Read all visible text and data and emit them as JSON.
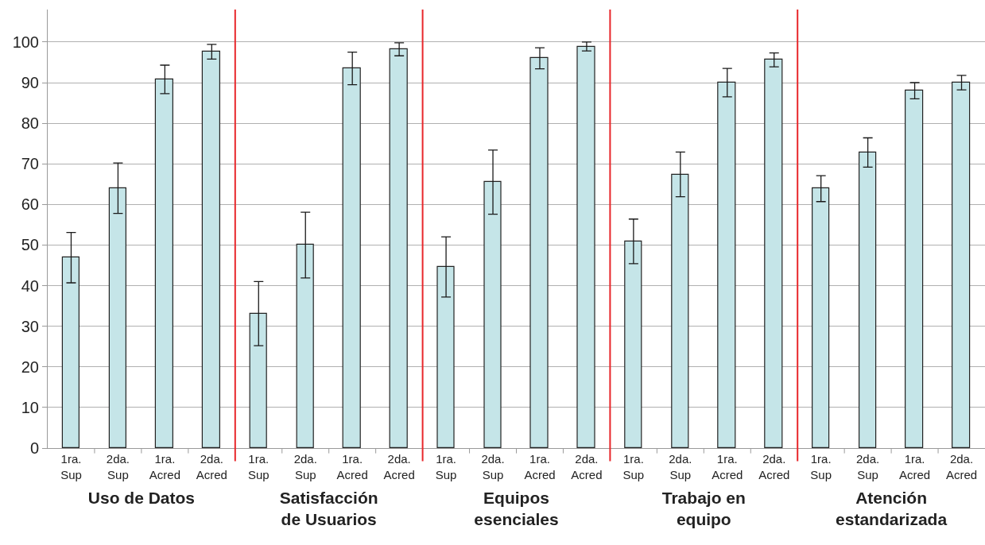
{
  "chart_data": [
    {
      "type": "bar",
      "xlabel": "Uso de Datos",
      "categories": [
        "1ra.\nSup",
        "2da.\nSup",
        "1ra.\nAcred",
        "2da.\nAcred"
      ],
      "values": [
        46.9,
        64.0,
        90.8,
        97.6
      ],
      "errors": [
        6.2,
        6.2,
        3.5,
        1.8
      ],
      "color": "#c5e5e8",
      "ylim": [
        0,
        108
      ],
      "yticks": [
        0,
        10,
        20,
        30,
        40,
        50,
        60,
        70,
        80,
        90,
        100
      ],
      "grid": "y"
    },
    {
      "type": "bar",
      "xlabel": "Satisfacción\nde Usuarios",
      "categories": [
        "1ra.\nSup",
        "2da.\nSup",
        "1ra.\nAcred",
        "2da.\nAcred"
      ],
      "values": [
        33.1,
        50.0,
        93.5,
        98.2
      ],
      "errors": [
        7.9,
        8.1,
        4.0,
        1.6
      ],
      "color": "#c5e5e8",
      "ylim": [
        0,
        108
      ],
      "yticks": [
        0,
        10,
        20,
        30,
        40,
        50,
        60,
        70,
        80,
        90,
        100
      ],
      "grid": "y",
      "tick_labels": "x"
    },
    {
      "type": "bar",
      "xlabel": "Equipos\nesenciales",
      "categories": [
        "1ra.\nSup",
        "2da.\nSup",
        "1ra.\nAcred",
        "2da.\nAcred"
      ],
      "values": [
        44.6,
        65.5,
        96.0,
        98.9
      ],
      "errors": [
        7.4,
        7.9,
        2.6,
        1.1
      ],
      "color": "#c5e5e8",
      "ylim": [
        0,
        108
      ],
      "yticks": [
        0,
        10,
        20,
        30,
        40,
        50,
        60,
        70,
        80,
        90,
        100
      ],
      "grid": "y",
      "tick_labels": "x"
    },
    {
      "type": "bar",
      "xlabel": "Trabajo en\nequipo",
      "categories": [
        "1ra.\nSup",
        "2da.\nSup",
        "1ra.\nAcred",
        "2da.\nAcred"
      ],
      "values": [
        50.9,
        67.4,
        90.0,
        95.6
      ],
      "errors": [
        5.5,
        5.5,
        3.5,
        1.7
      ],
      "color": "#c5e5e8",
      "ylim": [
        0,
        108
      ],
      "yticks": [
        0,
        10,
        20,
        30,
        40,
        50,
        60,
        70,
        80,
        90,
        100
      ],
      "grid": "y",
      "tick_labels": "x"
    },
    {
      "type": "bar",
      "xlabel": "Atención\nestandarizada",
      "categories": [
        "1ra.\nSup",
        "2da.\nSup",
        "1ra.\nAcred",
        "2da.\nAcred"
      ],
      "values": [
        63.9,
        72.8,
        88.0,
        90.0
      ],
      "errors": [
        3.2,
        3.6,
        2.0,
        1.8
      ],
      "color": "#c5e5e8",
      "ylim": [
        0,
        108
      ],
      "yticks": [
        0,
        10,
        20,
        30,
        40,
        50,
        60,
        70,
        80,
        90,
        100
      ],
      "grid": "y",
      "tick_labels": "x"
    }
  ]
}
